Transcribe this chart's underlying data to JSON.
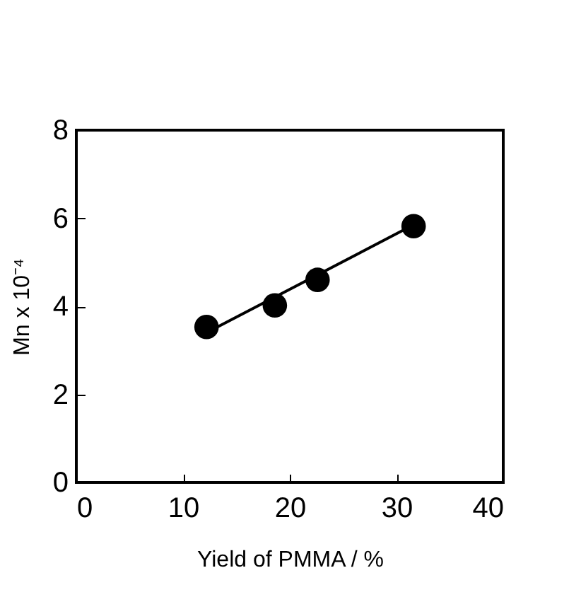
{
  "chart_data": {
    "type": "scatter",
    "xlabel": "Yield of PMMA / %",
    "ylabel": "Mn x 10⁻⁴",
    "xlim": [
      0,
      40
    ],
    "xticks": [
      0,
      10,
      20,
      30,
      40
    ],
    "ylim": [
      0,
      8
    ],
    "yticks": [
      0,
      2,
      4,
      6,
      8
    ],
    "grid": false,
    "marker": "circle",
    "series": [
      {
        "color": "#000000",
        "x": [
          12.2,
          18.6,
          22.6,
          31.6
        ],
        "values": [
          3.53,
          4.02,
          4.6,
          5.82
        ]
      },
      {
        "type": "line",
        "color": "#000000",
        "x": [
          12.2,
          31.6
        ],
        "values": [
          3.4,
          5.85
        ],
        "line_style": "solid",
        "marker": "none"
      }
    ]
  }
}
